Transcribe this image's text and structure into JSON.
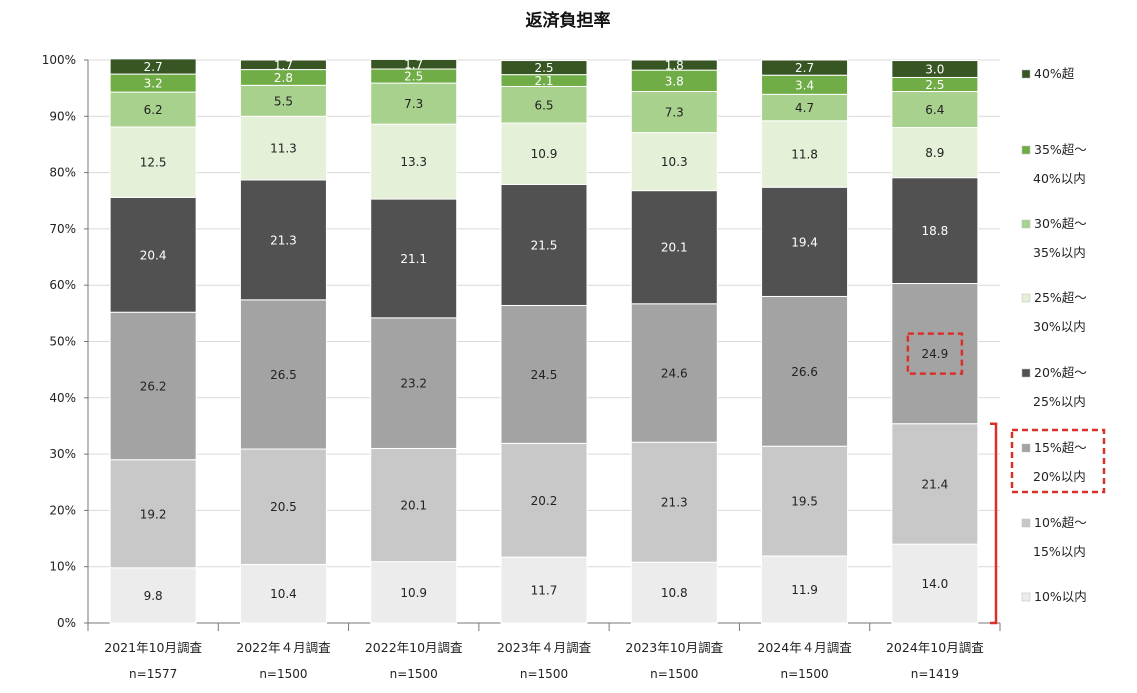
{
  "chart_data": {
    "type": "bar",
    "stacked": true,
    "title": "返済負担率",
    "ylim": [
      0,
      100
    ],
    "y_ticks": [
      "0%",
      "10%",
      "20%",
      "30%",
      "40%",
      "50%",
      "60%",
      "70%",
      "80%",
      "90%",
      "100%"
    ],
    "grid": false,
    "legend_position": "right",
    "categories": [
      "2021年10月調査",
      "2022年４月調査",
      "2022年10月調査",
      "2023年４月調査",
      "2023年10月調査",
      "2024年４月調査",
      "2024年10月調査"
    ],
    "sample_sizes": [
      "n=1577",
      "n=1500",
      "n=1500",
      "n=1500",
      "n=1500",
      "n=1500",
      "n=1419"
    ],
    "series": [
      {
        "name": "10%以内",
        "legend_lines": [
          "10%以内"
        ],
        "color": "#ececec",
        "text_color": "#222222",
        "values": [
          "9.8",
          "10.4",
          "10.9",
          "11.7",
          "10.8",
          "11.9",
          "14.0"
        ]
      },
      {
        "name": "10%超〜15%以内",
        "legend_lines": [
          "10%超〜",
          "15%以内"
        ],
        "color": "#c8c8c8",
        "text_color": "#222222",
        "values": [
          "19.2",
          "20.5",
          "20.1",
          "20.2",
          "21.3",
          "19.5",
          "21.4"
        ]
      },
      {
        "name": "15%超〜20%以内",
        "legend_lines": [
          "15%超〜",
          "20%以内"
        ],
        "color": "#a3a3a3",
        "text_color": "#222222",
        "values": [
          "26.2",
          "26.5",
          "23.2",
          "24.5",
          "24.6",
          "26.6",
          "24.9"
        ]
      },
      {
        "name": "20%超〜25%以内",
        "legend_lines": [
          "20%超〜",
          "25%以内"
        ],
        "color": "#515151",
        "text_color": "#ffffff",
        "values": [
          "20.4",
          "21.3",
          "21.1",
          "21.5",
          "20.1",
          "19.4",
          "18.8"
        ]
      },
      {
        "name": "25%超〜30%以内",
        "legend_lines": [
          "25%超〜",
          "30%以内"
        ],
        "color": "#e4f0d8",
        "text_color": "#222222",
        "values": [
          "12.5",
          "11.3",
          "13.3",
          "10.9",
          "10.3",
          "11.8",
          "8.9"
        ]
      },
      {
        "name": "30%超〜35%以内",
        "legend_lines": [
          "30%超〜",
          "35%以内"
        ],
        "color": "#a9d18e",
        "text_color": "#222222",
        "values": [
          "6.2",
          "5.5",
          "7.3",
          "6.5",
          "7.3",
          "4.7",
          "6.4"
        ]
      },
      {
        "name": "35%超〜40%以内",
        "legend_lines": [
          "35%超〜",
          "40%以内"
        ],
        "color": "#70ad47",
        "text_color": "#ffffff",
        "values": [
          "3.2",
          "2.8",
          "2.5",
          "2.1",
          "3.8",
          "3.4",
          "2.5"
        ]
      },
      {
        "name": "40%超",
        "legend_lines": [
          "40%超"
        ],
        "color": "#375623",
        "text_color": "#ffffff",
        "values": [
          "2.7",
          "1.7",
          "1.7",
          "2.5",
          "1.8",
          "2.7",
          "3.0"
        ]
      }
    ],
    "annotations": {
      "highlight_color": "#d9302a",
      "highlighted_value": {
        "series": "15%超〜20%以内",
        "category": "2024年10月調査",
        "value": "24.9"
      },
      "highlighted_legend": "15%超〜20%以内",
      "bracket": {
        "category": "2024年10月調査",
        "covers_series": [
          "10%以内",
          "10%超〜15%以内"
        ]
      }
    }
  }
}
